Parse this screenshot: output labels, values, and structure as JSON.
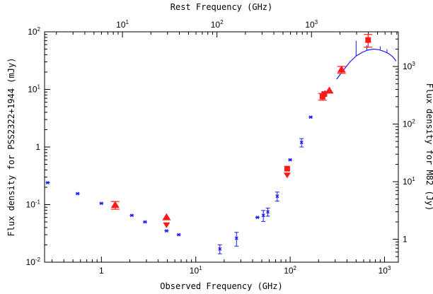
{
  "chart_data": {
    "type": "scatter",
    "xlabel": "Observed Frequency (GHz)",
    "ylabel": "Flux density for PSS2322+1944 (mJy)",
    "top_xlabel": "Rest Frequency (GHz)",
    "right_ylabel": "Flux density for M82 (Jy)",
    "x_scale": "log",
    "y_scale": "log",
    "xlim": [
      0.25,
      1400
    ],
    "ylim": [
      0.01,
      100
    ],
    "top_xlim": [
      1.5,
      8300
    ],
    "right_ylim": [
      0.4,
      4000
    ],
    "grid": false,
    "colors": {
      "m82": "#1a1aff",
      "pss": "#ff1a1a",
      "axis": "#000000"
    },
    "x_ticks": [
      {
        "value": 1,
        "label": "1"
      },
      {
        "value": 10,
        "base": "10",
        "exp": "1"
      },
      {
        "value": 100,
        "base": "10",
        "exp": "2"
      },
      {
        "value": 1000,
        "base": "10",
        "exp": "3"
      }
    ],
    "top_ticks": [
      {
        "value": 10,
        "base": "10",
        "exp": "1"
      },
      {
        "value": 100,
        "base": "10",
        "exp": "2"
      },
      {
        "value": 1000,
        "base": "10",
        "exp": "3"
      }
    ],
    "y_ticks": [
      {
        "value": 0.01,
        "base": "10",
        "exp": "-2"
      },
      {
        "value": 0.1,
        "base": "10",
        "exp": "-1"
      },
      {
        "value": 1,
        "label": "1"
      },
      {
        "value": 10,
        "base": "10",
        "exp": "1"
      },
      {
        "value": 100,
        "base": "10",
        "exp": "2"
      }
    ],
    "right_ticks": [
      {
        "value": 1,
        "label": "1"
      },
      {
        "value": 10,
        "base": "10",
        "exp": "1"
      },
      {
        "value": 100,
        "base": "10",
        "exp": "2"
      },
      {
        "value": 1000,
        "base": "10",
        "exp": "3"
      }
    ],
    "m82_points": [
      {
        "x": 0.27,
        "y": 0.24
      },
      {
        "x": 0.56,
        "y": 0.155
      },
      {
        "x": 1.0,
        "y": 0.105
      },
      {
        "x": 2.1,
        "y": 0.065
      },
      {
        "x": 2.9,
        "y": 0.05
      },
      {
        "x": 4.9,
        "y": 0.035
      },
      {
        "x": 6.6,
        "y": 0.03
      },
      {
        "x": 18,
        "y": 0.017,
        "err": 0.003
      },
      {
        "x": 27,
        "y": 0.026,
        "err": 0.007
      },
      {
        "x": 45,
        "y": 0.06
      },
      {
        "x": 52,
        "y": 0.065,
        "err": 0.014
      },
      {
        "x": 58,
        "y": 0.075,
        "err": 0.012
      },
      {
        "x": 73,
        "y": 0.14,
        "err": 0.025
      },
      {
        "x": 100,
        "y": 0.6
      },
      {
        "x": 132,
        "y": 1.2,
        "err": 0.2
      },
      {
        "x": 165,
        "y": 3.3
      },
      {
        "x": 240,
        "y": 9.0
      }
    ],
    "m82_sed": [
      {
        "x": 310,
        "y": 15
      },
      {
        "x": 370,
        "y": 22
      },
      {
        "x": 430,
        "y": 30
      },
      {
        "x": 500,
        "y": 38
      },
      {
        "x": 580,
        "y": 44
      },
      {
        "x": 660,
        "y": 48
      },
      {
        "x": 760,
        "y": 50
      },
      {
        "x": 860,
        "y": 49
      },
      {
        "x": 980,
        "y": 46
      },
      {
        "x": 1100,
        "y": 42
      },
      {
        "x": 1220,
        "y": 37
      },
      {
        "x": 1330,
        "y": 31
      }
    ],
    "m82_spikes": [
      {
        "x": 500,
        "y_from": 38,
        "y_to": 70
      },
      {
        "x": 650,
        "y_from": 48,
        "y_to": 58
      },
      {
        "x": 900,
        "y_from": 49,
        "y_to": 56
      },
      {
        "x": 1060,
        "y_from": 44,
        "y_to": 50
      }
    ],
    "pss_points": [
      {
        "x": 1.4,
        "y": 0.098,
        "marker": "triangle",
        "err": 0.015
      },
      {
        "x": 4.9,
        "y": 0.06,
        "marker": "triangle"
      },
      {
        "x": 4.9,
        "y": 0.045,
        "marker": "limit"
      },
      {
        "x": 93,
        "y": 0.42,
        "marker": "square"
      },
      {
        "x": 93,
        "y": 0.33,
        "marker": "limit"
      },
      {
        "x": 220,
        "y": 7.5,
        "marker": "square",
        "err": 1.0
      },
      {
        "x": 230,
        "y": 8.3,
        "marker": "square"
      },
      {
        "x": 260,
        "y": 9.5,
        "marker": "triangle"
      },
      {
        "x": 350,
        "y": 22,
        "marker": "triangle",
        "err": 3
      },
      {
        "x": 670,
        "y": 72,
        "marker": "square",
        "err": 18
      }
    ]
  }
}
